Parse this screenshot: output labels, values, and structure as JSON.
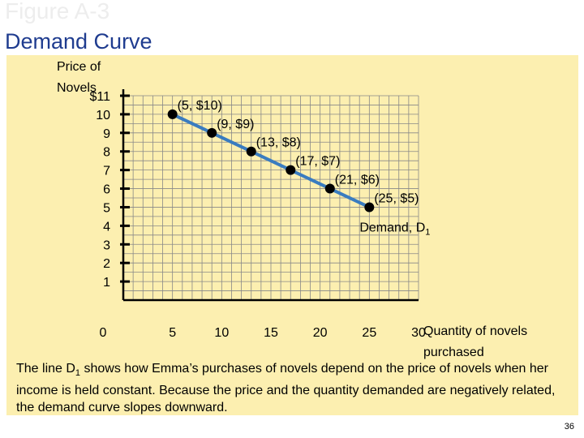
{
  "slide": {
    "figure_label": "Figure A-3",
    "title": "Demand Curve",
    "page_number": "36"
  },
  "colors": {
    "panel_background": "#fcefb0",
    "grid": "#888888",
    "demand_line": "#3a7cc0",
    "point": "#000000",
    "title": "#1f3c8f"
  },
  "caption": {
    "pre_sub": "The line D",
    "sub": "1",
    "post_sub": " shows how Emma’s purchases of novels depend on the price of novels when her income is held constant. Because the price and the quantity demanded are negatively related, the demand curve slopes downward."
  },
  "chart_data": {
    "type": "line",
    "title": "Demand Curve",
    "ylabel_line1": "Price of",
    "ylabel_line2": "Novels",
    "xlabel_line1": "Quantity of novels",
    "xlabel_line2": "purchased",
    "xlim": [
      0,
      30
    ],
    "ylim": [
      0,
      11
    ],
    "x_ticks": [
      {
        "value": 0,
        "label": "0"
      },
      {
        "value": 5,
        "label": "5"
      },
      {
        "value": 10,
        "label": "10"
      },
      {
        "value": 15,
        "label": "15"
      },
      {
        "value": 20,
        "label": "20"
      },
      {
        "value": 25,
        "label": "25"
      },
      {
        "value": 30,
        "label": "30"
      }
    ],
    "y_ticks": [
      {
        "value": 11,
        "label": "$11"
      },
      {
        "value": 10,
        "label": "10"
      },
      {
        "value": 9,
        "label": "9"
      },
      {
        "value": 8,
        "label": "8"
      },
      {
        "value": 7,
        "label": "7"
      },
      {
        "value": 6,
        "label": "6"
      },
      {
        "value": 5,
        "label": "5"
      },
      {
        "value": 4,
        "label": "4"
      },
      {
        "value": 3,
        "label": "3"
      },
      {
        "value": 2,
        "label": "2"
      },
      {
        "value": 1,
        "label": "1"
      }
    ],
    "grid": true,
    "series": [
      {
        "name": "Demand, D1",
        "label_main": "Demand, D",
        "label_sub": "1",
        "points": [
          {
            "x": 5,
            "y": 10,
            "label": "(5, $10)"
          },
          {
            "x": 9,
            "y": 9,
            "label": "(9, $9)"
          },
          {
            "x": 13,
            "y": 8,
            "label": "(13, $8)"
          },
          {
            "x": 17,
            "y": 7,
            "label": "(17, $7)"
          },
          {
            "x": 21,
            "y": 6,
            "label": "(21, $6)"
          },
          {
            "x": 25,
            "y": 5,
            "label": "(25, $5)"
          }
        ]
      }
    ]
  }
}
